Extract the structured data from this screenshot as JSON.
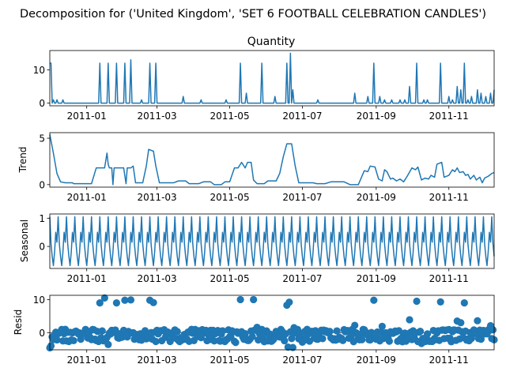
{
  "chart_data": {
    "title": "Decomposition for ('United Kingdom', 'SET 6 FOOTBALL CELEBRATION CANDLES')",
    "x_start": "2010-12-01",
    "x_end": "2011-12-09",
    "x_ticks": [
      "2011-01",
      "2011-03",
      "2011-05",
      "2011-07",
      "2011-09",
      "2011-11"
    ],
    "panels": [
      {
        "id": "observed",
        "type": "line",
        "title": "Quantity",
        "ylabel": "",
        "ylim": [
          -0.8,
          15.8
        ],
        "yticks": [
          0,
          10
        ],
        "baseline": 0,
        "spikes": [
          [
            "2010-12-01",
            12
          ],
          [
            "2010-12-02",
            12
          ],
          [
            "2010-12-04",
            1
          ],
          [
            "2010-12-07",
            1
          ],
          [
            "2010-12-12",
            1
          ],
          [
            "2011-01-12",
            12
          ],
          [
            "2011-01-19",
            12
          ],
          [
            "2011-01-26",
            12
          ],
          [
            "2011-02-02",
            12
          ],
          [
            "2011-02-07",
            13
          ],
          [
            "2011-02-16",
            1
          ],
          [
            "2011-02-23",
            12
          ],
          [
            "2011-02-28",
            12
          ],
          [
            "2011-03-23",
            2
          ],
          [
            "2011-04-07",
            1
          ],
          [
            "2011-04-28",
            1
          ],
          [
            "2011-05-10",
            12
          ],
          [
            "2011-05-15",
            3
          ],
          [
            "2011-05-28",
            12
          ],
          [
            "2011-06-08",
            2
          ],
          [
            "2011-06-18",
            12
          ],
          [
            "2011-06-21",
            15
          ],
          [
            "2011-06-23",
            4
          ],
          [
            "2011-07-14",
            1
          ],
          [
            "2011-08-14",
            3
          ],
          [
            "2011-08-25",
            2
          ],
          [
            "2011-08-30",
            12
          ],
          [
            "2011-09-04",
            2
          ],
          [
            "2011-09-08",
            1
          ],
          [
            "2011-09-14",
            1
          ],
          [
            "2011-09-21",
            1
          ],
          [
            "2011-09-25",
            1
          ],
          [
            "2011-09-29",
            5
          ],
          [
            "2011-10-05",
            12
          ],
          [
            "2011-10-11",
            1
          ],
          [
            "2011-10-14",
            1
          ],
          [
            "2011-10-25",
            12
          ],
          [
            "2011-11-01",
            2
          ],
          [
            "2011-11-04",
            1
          ],
          [
            "2011-11-08",
            5
          ],
          [
            "2011-11-11",
            4
          ],
          [
            "2011-11-14",
            12
          ],
          [
            "2011-11-17",
            1
          ],
          [
            "2011-11-20",
            2
          ],
          [
            "2011-11-25",
            4
          ],
          [
            "2011-11-28",
            3
          ],
          [
            "2011-12-02",
            2
          ],
          [
            "2011-12-06",
            3
          ],
          [
            "2011-12-09",
            4
          ]
        ]
      },
      {
        "id": "trend",
        "type": "line",
        "title": "",
        "ylabel": "Trend",
        "ylim": [
          -0.27,
          5.6
        ],
        "yticks": [
          0,
          5
        ],
        "points": [
          [
            "2010-12-01",
            5.4
          ],
          [
            "2010-12-04",
            3.4
          ],
          [
            "2010-12-07",
            1.2
          ],
          [
            "2010-12-10",
            0.3
          ],
          [
            "2010-12-14",
            0.2
          ],
          [
            "2010-12-20",
            0.2
          ],
          [
            "2010-12-21",
            0.1
          ],
          [
            "2011-01-05",
            0.1
          ],
          [
            "2011-01-09",
            1.8
          ],
          [
            "2011-01-16",
            1.8
          ],
          [
            "2011-01-18",
            3.4
          ],
          [
            "2011-01-19",
            2.2
          ],
          [
            "2011-01-20",
            1.8
          ],
          [
            "2011-01-22",
            1.8
          ],
          [
            "2011-01-23",
            0.0
          ],
          [
            "2011-01-24",
            1.8
          ],
          [
            "2011-02-01",
            1.8
          ],
          [
            "2011-02-03",
            0.1
          ],
          [
            "2011-02-04",
            1.8
          ],
          [
            "2011-02-07",
            1.8
          ],
          [
            "2011-02-09",
            2.0
          ],
          [
            "2011-02-11",
            0.2
          ],
          [
            "2011-02-17",
            0.2
          ],
          [
            "2011-02-20",
            2.0
          ],
          [
            "2011-02-22",
            3.8
          ],
          [
            "2011-02-26",
            3.6
          ],
          [
            "2011-02-28",
            2.0
          ],
          [
            "2011-03-03",
            0.2
          ],
          [
            "2011-03-15",
            0.2
          ],
          [
            "2011-03-19",
            0.4
          ],
          [
            "2011-03-25",
            0.4
          ],
          [
            "2011-03-28",
            0.1
          ],
          [
            "2011-04-05",
            0.1
          ],
          [
            "2011-04-09",
            0.3
          ],
          [
            "2011-04-15",
            0.3
          ],
          [
            "2011-04-18",
            0.0
          ],
          [
            "2011-04-24",
            0.0
          ],
          [
            "2011-04-27",
            0.3
          ],
          [
            "2011-05-01",
            0.3
          ],
          [
            "2011-05-05",
            1.8
          ],
          [
            "2011-05-08",
            1.8
          ],
          [
            "2011-05-11",
            2.4
          ],
          [
            "2011-05-14",
            1.8
          ],
          [
            "2011-05-16",
            2.4
          ],
          [
            "2011-05-19",
            2.4
          ],
          [
            "2011-05-21",
            0.5
          ],
          [
            "2011-05-24",
            0.1
          ],
          [
            "2011-05-30",
            0.1
          ],
          [
            "2011-06-02",
            0.4
          ],
          [
            "2011-06-09",
            0.4
          ],
          [
            "2011-06-12",
            1.2
          ],
          [
            "2011-06-15",
            3.0
          ],
          [
            "2011-06-18",
            4.4
          ],
          [
            "2011-06-22",
            4.4
          ],
          [
            "2011-06-25",
            2.0
          ],
          [
            "2011-06-28",
            0.2
          ],
          [
            "2011-07-10",
            0.2
          ],
          [
            "2011-07-13",
            0.1
          ],
          [
            "2011-07-20",
            0.1
          ],
          [
            "2011-07-25",
            0.3
          ],
          [
            "2011-08-05",
            0.3
          ],
          [
            "2011-08-10",
            0.0
          ],
          [
            "2011-08-17",
            0.0
          ],
          [
            "2011-08-22",
            1.5
          ],
          [
            "2011-08-25",
            1.4
          ],
          [
            "2011-08-27",
            2.0
          ],
          [
            "2011-08-31",
            1.9
          ],
          [
            "2011-09-03",
            0.6
          ],
          [
            "2011-09-06",
            0.4
          ],
          [
            "2011-09-08",
            1.6
          ],
          [
            "2011-09-10",
            1.4
          ],
          [
            "2011-09-13",
            0.6
          ],
          [
            "2011-09-15",
            0.7
          ],
          [
            "2011-09-18",
            0.4
          ],
          [
            "2011-09-21",
            0.6
          ],
          [
            "2011-09-24",
            0.3
          ],
          [
            "2011-09-27",
            0.9
          ],
          [
            "2011-10-01",
            1.8
          ],
          [
            "2011-10-04",
            1.6
          ],
          [
            "2011-10-06",
            1.9
          ],
          [
            "2011-10-09",
            0.5
          ],
          [
            "2011-10-12",
            0.7
          ],
          [
            "2011-10-15",
            0.6
          ],
          [
            "2011-10-17",
            1.0
          ],
          [
            "2011-10-20",
            0.8
          ],
          [
            "2011-10-22",
            2.2
          ],
          [
            "2011-10-26",
            2.4
          ],
          [
            "2011-10-28",
            0.8
          ],
          [
            "2011-11-01",
            1.0
          ],
          [
            "2011-11-04",
            1.6
          ],
          [
            "2011-11-06",
            1.4
          ],
          [
            "2011-11-08",
            1.8
          ],
          [
            "2011-11-10",
            1.3
          ],
          [
            "2011-11-13",
            1.4
          ],
          [
            "2011-11-15",
            1.0
          ],
          [
            "2011-11-17",
            1.1
          ],
          [
            "2011-11-19",
            0.6
          ],
          [
            "2011-11-22",
            1.0
          ],
          [
            "2011-11-24",
            0.5
          ],
          [
            "2011-11-27",
            0.8
          ],
          [
            "2011-11-29",
            0.2
          ],
          [
            "2011-12-01",
            0.7
          ],
          [
            "2011-12-04",
            0.9
          ],
          [
            "2011-12-07",
            1.2
          ],
          [
            "2011-12-09",
            1.3
          ]
        ]
      },
      {
        "id": "seasonal",
        "type": "line",
        "title": "",
        "ylabel": "Seasonal",
        "ylim": [
          -0.78,
          1.15
        ],
        "yticks": [
          0,
          1
        ],
        "period_days": 7,
        "cycle": [
          1.05,
          0.1,
          -0.35,
          -0.68,
          -0.2,
          0.5,
          0.15
        ]
      },
      {
        "id": "resid",
        "type": "scatter",
        "title": "",
        "ylabel": "Resid",
        "ylim": [
          -5.2,
          11.3
        ],
        "yticks": [
          0,
          10
        ],
        "baseline": 0,
        "outliers": [
          [
            "2010-12-01",
            -4.6
          ],
          [
            "2010-12-02",
            -4.0
          ],
          [
            "2011-01-12",
            9.0
          ],
          [
            "2011-01-16",
            10.5
          ],
          [
            "2011-01-26",
            9.0
          ],
          [
            "2011-02-02",
            9.8
          ],
          [
            "2011-02-07",
            9.9
          ],
          [
            "2011-02-23",
            9.8
          ],
          [
            "2011-02-26",
            9.1
          ],
          [
            "2011-05-10",
            10.0
          ],
          [
            "2011-05-21",
            10.0
          ],
          [
            "2011-06-18",
            8.3
          ],
          [
            "2011-06-20",
            9.2
          ],
          [
            "2011-06-19",
            -4.4
          ],
          [
            "2011-06-23",
            -4.5
          ],
          [
            "2011-08-30",
            9.8
          ],
          [
            "2011-09-29",
            3.9
          ],
          [
            "2011-10-05",
            9.5
          ],
          [
            "2011-10-25",
            9.3
          ],
          [
            "2011-11-08",
            3.5
          ],
          [
            "2011-11-11",
            3.0
          ],
          [
            "2011-11-14",
            9.0
          ],
          [
            "2011-11-25",
            3.6
          ],
          [
            "2011-08-14",
            2.2
          ],
          [
            "2011-09-06",
            1.9
          ],
          [
            "2011-05-24",
            1.6
          ],
          [
            "2011-06-24",
            1.5
          ],
          [
            "2011-12-06",
            2.1
          ],
          [
            "2011-01-19",
            -3.6
          ],
          [
            "2011-10-09",
            -3.3
          ],
          [
            "2011-05-06",
            -3.0
          ],
          [
            "2011-07-01",
            -2.9
          ]
        ]
      }
    ]
  }
}
